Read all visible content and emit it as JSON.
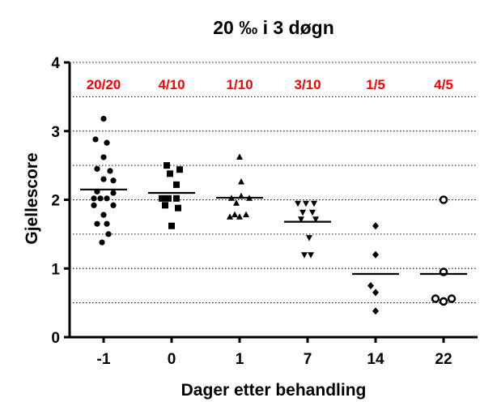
{
  "chart_data": {
    "type": "scatter",
    "title": "20 ‰ i 3 døgn",
    "xlabel": "Dager etter behandling",
    "ylabel": "Gjellescore",
    "ylim": [
      0,
      4
    ],
    "yticks": [
      "0",
      "1",
      "2",
      "3",
      "4"
    ],
    "minor_gridlines": [
      0.5,
      1.0,
      1.5,
      2.0,
      2.5,
      3.0,
      3.5,
      4.0
    ],
    "grid": "horizontal dotted",
    "annotation_color": "#ff0000",
    "categories": [
      "-1",
      "0",
      "1",
      "7",
      "14",
      "22"
    ],
    "annotations": [
      "20/20",
      "4/10",
      "1/10",
      "3/10",
      "1/5",
      "4/5"
    ],
    "groups": [
      {
        "category": "-1",
        "marker": "circle",
        "mean": 2.15,
        "points": [
          {
            "dx": 0.0,
            "y": 3.18
          },
          {
            "dx": -0.25,
            "y": 2.88
          },
          {
            "dx": 0.1,
            "y": 2.83
          },
          {
            "dx": 0.0,
            "y": 2.62
          },
          {
            "dx": -0.2,
            "y": 2.45
          },
          {
            "dx": 0.2,
            "y": 2.42
          },
          {
            "dx": 0.0,
            "y": 2.3
          },
          {
            "dx": 0.3,
            "y": 2.28
          },
          {
            "dx": -0.2,
            "y": 2.12
          },
          {
            "dx": 0.3,
            "y": 2.1
          },
          {
            "dx": -0.3,
            "y": 2.02
          },
          {
            "dx": -0.1,
            "y": 2.02
          },
          {
            "dx": 0.1,
            "y": 2.02
          },
          {
            "dx": -0.3,
            "y": 1.92
          },
          {
            "dx": 0.3,
            "y": 1.92
          },
          {
            "dx": 0.0,
            "y": 1.78
          },
          {
            "dx": -0.2,
            "y": 1.65
          },
          {
            "dx": 0.1,
            "y": 1.65
          },
          {
            "dx": 0.15,
            "y": 1.5
          },
          {
            "dx": -0.05,
            "y": 1.38
          }
        ]
      },
      {
        "category": "0",
        "marker": "square",
        "mean": 2.1,
        "points": [
          {
            "dx": -0.15,
            "y": 2.5
          },
          {
            "dx": 0.25,
            "y": 2.44
          },
          {
            "dx": -0.05,
            "y": 2.38
          },
          {
            "dx": 0.15,
            "y": 2.22
          },
          {
            "dx": -0.3,
            "y": 2.02
          },
          {
            "dx": -0.1,
            "y": 2.02
          },
          {
            "dx": 0.15,
            "y": 2.02
          },
          {
            "dx": -0.2,
            "y": 1.92
          },
          {
            "dx": 0.2,
            "y": 1.88
          },
          {
            "dx": 0.0,
            "y": 1.62
          }
        ]
      },
      {
        "category": "1",
        "marker": "triangle-up",
        "mean": 2.03,
        "points": [
          {
            "dx": 0.0,
            "y": 2.62
          },
          {
            "dx": 0.05,
            "y": 2.26
          },
          {
            "dx": -0.25,
            "y": 2.02
          },
          {
            "dx": 0.05,
            "y": 2.05
          },
          {
            "dx": 0.3,
            "y": 2.02
          },
          {
            "dx": -0.1,
            "y": 1.95
          },
          {
            "dx": -0.15,
            "y": 1.78
          },
          {
            "dx": 0.2,
            "y": 1.78
          },
          {
            "dx": -0.3,
            "y": 1.75
          },
          {
            "dx": 0.0,
            "y": 1.75
          }
        ]
      },
      {
        "category": "7",
        "marker": "triangle-down",
        "mean": 1.68,
        "points": [
          {
            "dx": -0.3,
            "y": 1.95
          },
          {
            "dx": -0.05,
            "y": 1.95
          },
          {
            "dx": 0.2,
            "y": 1.95
          },
          {
            "dx": -0.15,
            "y": 1.82
          },
          {
            "dx": 0.15,
            "y": 1.82
          },
          {
            "dx": -0.2,
            "y": 1.72
          },
          {
            "dx": 0.25,
            "y": 1.72
          },
          {
            "dx": 0.05,
            "y": 1.45
          },
          {
            "dx": -0.1,
            "y": 1.2
          },
          {
            "dx": 0.1,
            "y": 1.2
          }
        ]
      },
      {
        "category": "14",
        "marker": "diamond",
        "mean": 0.92,
        "points": [
          {
            "dx": 0.0,
            "y": 1.62
          },
          {
            "dx": 0.0,
            "y": 1.2
          },
          {
            "dx": -0.15,
            "y": 0.75
          },
          {
            "dx": 0.0,
            "y": 0.65
          },
          {
            "dx": 0.0,
            "y": 0.38
          }
        ]
      },
      {
        "category": "22",
        "marker": "circle-open",
        "mean": 0.92,
        "points": [
          {
            "dx": 0.0,
            "y": 2.0
          },
          {
            "dx": 0.0,
            "y": 0.95
          },
          {
            "dx": -0.25,
            "y": 0.56
          },
          {
            "dx": 0.25,
            "y": 0.56
          },
          {
            "dx": 0.0,
            "y": 0.52
          }
        ]
      }
    ]
  }
}
